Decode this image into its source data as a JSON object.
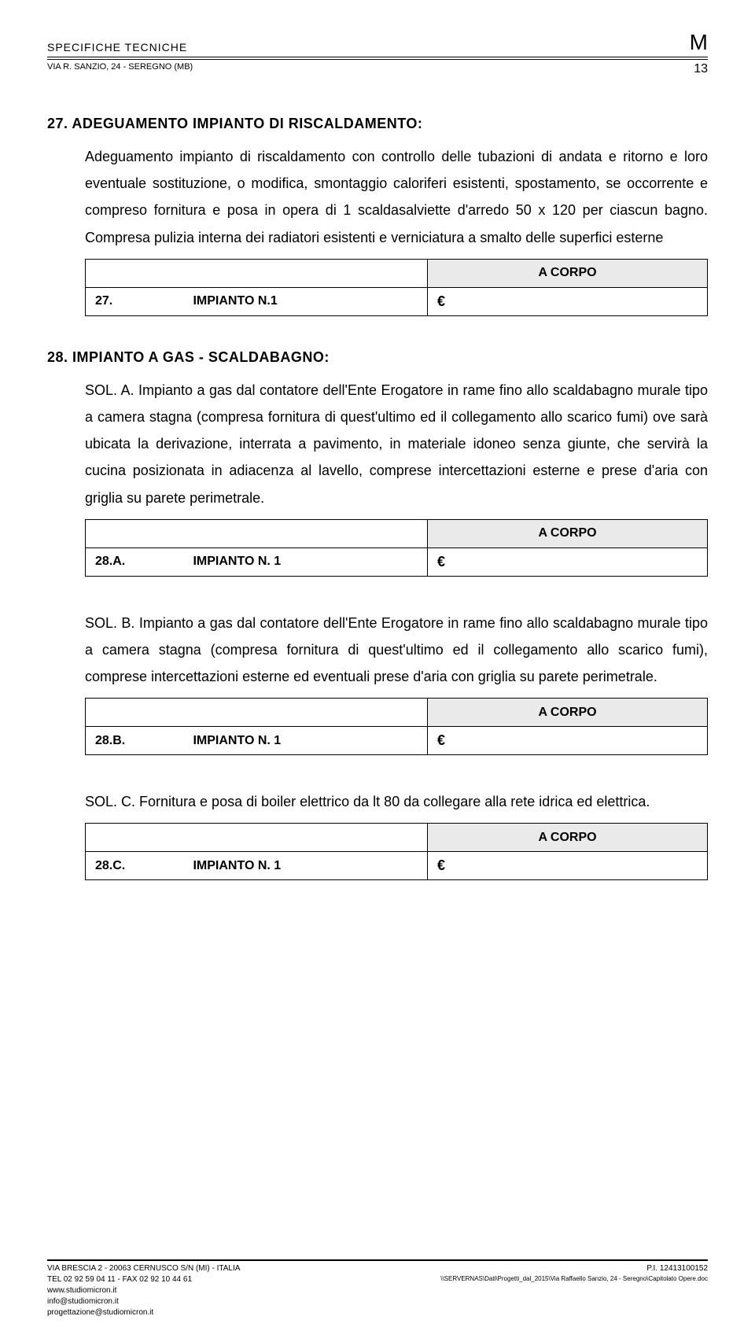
{
  "header": {
    "doc_title": "SPECIFICHE TECNICHE",
    "logo": "M",
    "address": "VIA R. SANZIO, 24 - SEREGNO (MB)",
    "page_number": "13"
  },
  "sections": [
    {
      "num": "27.",
      "title": "ADEGUAMENTO IMPIANTO DI RISCALDAMENTO:",
      "body": "Adeguamento impianto di riscaldamento con controllo delle tubazioni di andata e ritorno e loro eventuale sostituzione, o modifica, smontaggio caloriferi esistenti, spostamento, se occorrente e compreso fornitura e posa in opera di 1 scaldasalviette d'arredo 50 x 120 per ciascun bagno. Compresa pulizia interna dei radiatori esistenti e verniciatura a smalto delle superfici esterne",
      "price": {
        "unit": "A CORPO",
        "row_num": "27.",
        "row_label": "IMPIANTO N.1",
        "euro": "€"
      }
    },
    {
      "num": "28.",
      "title": "IMPIANTO A GAS - SCALDABAGNO:",
      "subs": [
        {
          "body": "SOL. A. Impianto a gas dal contatore dell'Ente Erogatore in rame fino allo scaldabagno murale tipo a camera stagna (compresa fornitura di quest'ultimo ed il collegamento allo scarico fumi) ove sarà ubicata la derivazione, interrata a pavimento, in materiale idoneo senza giunte, che servirà la cucina posizionata in adiacenza al lavello, comprese intercettazioni esterne e prese d'aria con griglia su parete perimetrale.",
          "price": {
            "unit": "A CORPO",
            "row_num": "28.A.",
            "row_label": "IMPIANTO N. 1",
            "euro": "€"
          }
        },
        {
          "body": "SOL. B. Impianto a gas dal contatore dell'Ente Erogatore in rame fino allo scaldabagno murale tipo a camera stagna (compresa fornitura di quest'ultimo ed il collegamento allo scarico fumi), comprese intercettazioni esterne ed eventuali prese d'aria con griglia su parete perimetrale.",
          "price": {
            "unit": "A CORPO",
            "row_num": "28.B.",
            "row_label": "IMPIANTO N. 1",
            "euro": "€"
          }
        },
        {
          "body": "SOL. C. Fornitura e posa di boiler elettrico da lt 80 da collegare alla rete idrica ed elettrica.",
          "price": {
            "unit": "A CORPO",
            "row_num": "28.C.",
            "row_label": "IMPIANTO N. 1",
            "euro": "€"
          }
        }
      ]
    }
  ],
  "footer": {
    "left": [
      "VIA BRESCIA 2 - 20063 CERNUSCO S/N (MI) - ITALIA",
      "TEL 02 92 59 04 11 - FAX 02 92 10 44 61",
      "www.studiomicron.it",
      "info@studiomicron.it",
      "progettazione@studiomicron.it"
    ],
    "right_pi": "P.I. 12413100152",
    "right_path": "\\\\SERVERNAS\\Dati\\Progetti_dal_2015\\Via Raffaello Sanzio, 24 - Seregno\\Capitolato Opere.doc"
  }
}
